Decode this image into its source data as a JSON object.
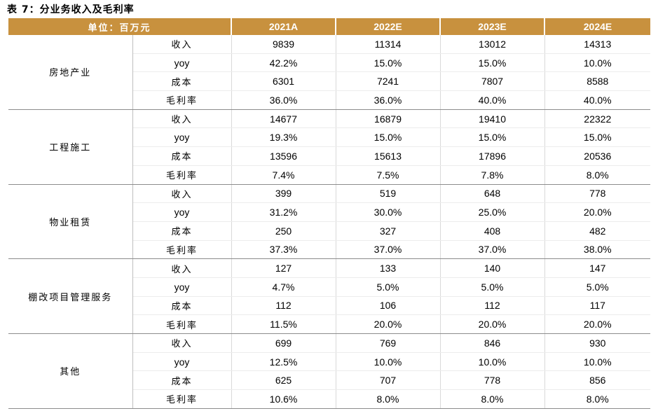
{
  "title": "表 7：分业务收入及毛利率",
  "header": {
    "unit_label": "单位：百万元",
    "years": [
      "2021A",
      "2022E",
      "2023E",
      "2024E"
    ]
  },
  "segments": [
    {
      "name": "房地产业",
      "rows": [
        {
          "metric": "收入",
          "values": [
            "9839",
            "11314",
            "13012",
            "14313"
          ]
        },
        {
          "metric": "yoy",
          "values": [
            "42.2%",
            "15.0%",
            "15.0%",
            "10.0%"
          ]
        },
        {
          "metric": "成本",
          "values": [
            "6301",
            "7241",
            "7807",
            "8588"
          ]
        },
        {
          "metric": "毛利率",
          "values": [
            "36.0%",
            "36.0%",
            "40.0%",
            "40.0%"
          ]
        }
      ]
    },
    {
      "name": "工程施工",
      "rows": [
        {
          "metric": "收入",
          "values": [
            "14677",
            "16879",
            "19410",
            "22322"
          ]
        },
        {
          "metric": "yoy",
          "values": [
            "19.3%",
            "15.0%",
            "15.0%",
            "15.0%"
          ]
        },
        {
          "metric": "成本",
          "values": [
            "13596",
            "15613",
            "17896",
            "20536"
          ]
        },
        {
          "metric": "毛利率",
          "values": [
            "7.4%",
            "7.5%",
            "7.8%",
            "8.0%"
          ]
        }
      ]
    },
    {
      "name": "物业租赁",
      "rows": [
        {
          "metric": "收入",
          "values": [
            "399",
            "519",
            "648",
            "778"
          ]
        },
        {
          "metric": "yoy",
          "values": [
            "31.2%",
            "30.0%",
            "25.0%",
            "20.0%"
          ]
        },
        {
          "metric": "成本",
          "values": [
            "250",
            "327",
            "408",
            "482"
          ]
        },
        {
          "metric": "毛利率",
          "values": [
            "37.3%",
            "37.0%",
            "37.0%",
            "38.0%"
          ]
        }
      ]
    },
    {
      "name": "棚改项目管理服务",
      "rows": [
        {
          "metric": "收入",
          "values": [
            "127",
            "133",
            "140",
            "147"
          ]
        },
        {
          "metric": "yoy",
          "values": [
            "4.7%",
            "5.0%",
            "5.0%",
            "5.0%"
          ]
        },
        {
          "metric": "成本",
          "values": [
            "112",
            "106",
            "112",
            "117"
          ]
        },
        {
          "metric": "毛利率",
          "values": [
            "11.5%",
            "20.0%",
            "20.0%",
            "20.0%"
          ]
        }
      ]
    },
    {
      "name": "其他",
      "rows": [
        {
          "metric": "收入",
          "values": [
            "699",
            "769",
            "846",
            "930"
          ]
        },
        {
          "metric": "yoy",
          "values": [
            "12.5%",
            "10.0%",
            "10.0%",
            "10.0%"
          ]
        },
        {
          "metric": "成本",
          "values": [
            "625",
            "707",
            "778",
            "856"
          ]
        },
        {
          "metric": "毛利率",
          "values": [
            "10.6%",
            "8.0%",
            "8.0%",
            "8.0%"
          ]
        }
      ]
    }
  ],
  "colors": {
    "header_bg": "#c8913e",
    "header_text": "#ffffff"
  }
}
